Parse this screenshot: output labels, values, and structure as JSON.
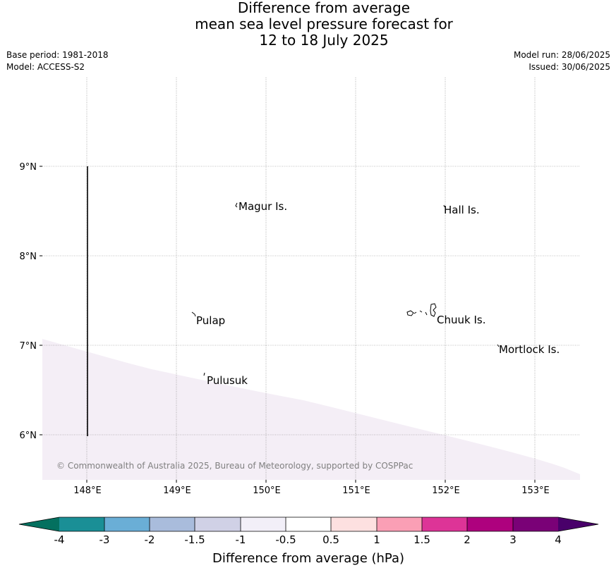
{
  "header": {
    "title_lines": [
      "Difference from average",
      "mean sea level pressure forecast for",
      "12 to 18 July 2025"
    ],
    "base_period": "Base period: 1981-2018",
    "model": "Model: ACCESS-S2",
    "model_run": "Model run: 28/06/2025",
    "issued": "Issued: 30/06/2025"
  },
  "map": {
    "lon_labels": [
      "148°E",
      "149°E",
      "150°E",
      "151°E",
      "152°E",
      "153°E"
    ],
    "lat_labels": [
      "9°N",
      "8°N",
      "7°N",
      "6°N"
    ],
    "places": {
      "magur": "Magur Is.",
      "hall": "Hall Is.",
      "pulap": "Pulap",
      "chuuk": "Chuuk Is.",
      "mortlock": "Mortlock Is.",
      "pulusuk": "Pulusuk"
    },
    "copyright": "© Commonwealth of Australia 2025, Bureau of Meteorology, supported by COSPPac",
    "shaded_region_color": "#f4eef6",
    "gridline_color": "#808080"
  },
  "colorbar": {
    "label": "Difference from average (hPa)",
    "ticks": [
      "-4",
      "-3",
      "-2",
      "-1.5",
      "-1",
      "-0.5",
      "0.5",
      "1",
      "1.5",
      "2",
      "3",
      "4"
    ],
    "colors": {
      "under": "#04705f",
      "b1": "#1a8f96",
      "b2": "#6aaed6",
      "b3": "#a9bcdc",
      "b4": "#d0d1e6",
      "b5": "#f2eff8",
      "b6": "#ffffff",
      "b7": "#fde0e0",
      "b8": "#fa9fb5",
      "b9": "#dd3497",
      "b10": "#ae017e",
      "b11": "#7a0177",
      "over": "#49006a"
    }
  }
}
